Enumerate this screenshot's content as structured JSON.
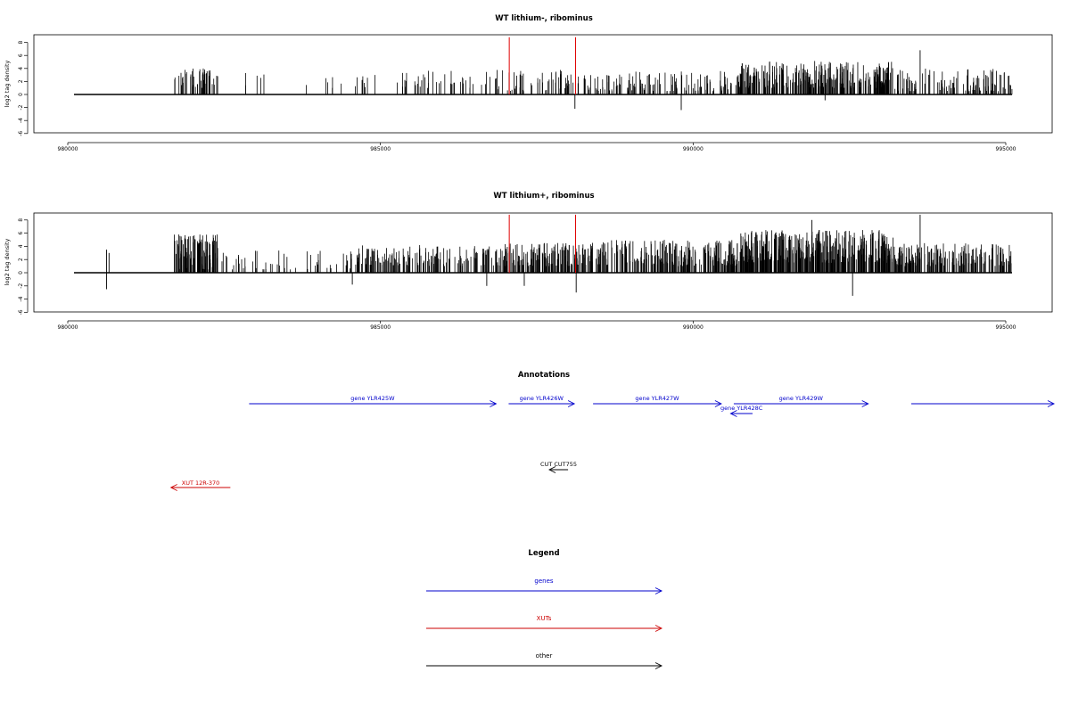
{
  "chart_data": [
    {
      "type": "bar",
      "title": "WT lithium-, ribominus",
      "ylabel": "log2 tag density",
      "xlim": [
        980000,
        995000
      ],
      "ylim": [
        -6,
        9
      ],
      "yticks": [
        -6,
        -4,
        -2,
        0,
        2,
        4,
        6,
        8
      ],
      "xticks": [
        980000,
        985000,
        990000,
        995000
      ],
      "baseline_span": [
        980100,
        995100
      ],
      "highlight_color": "#e00000",
      "bar_color": "#000000",
      "highlights": [
        {
          "x": 987060,
          "y": 8.8
        },
        {
          "x": 988120,
          "y": 8.8
        }
      ],
      "segments": [
        {
          "from": 981700,
          "to": 982400,
          "min": -4,
          "max": -1,
          "density": 0.07,
          "sign": "neg"
        },
        {
          "from": 982800,
          "to": 983300,
          "min": 1,
          "max": 3.5,
          "density": 0.01,
          "sign": "pos"
        },
        {
          "from": 983800,
          "to": 985200,
          "min": 1,
          "max": 3,
          "density": 0.01,
          "sign": "pos"
        },
        {
          "from": 985200,
          "to": 986800,
          "min": 1,
          "max": 3.7,
          "density": 0.025,
          "sign": "pos"
        },
        {
          "from": 986800,
          "to": 988300,
          "min": 0.5,
          "max": 3.8,
          "density": 0.04,
          "sign": "pos"
        },
        {
          "from": 988300,
          "to": 990700,
          "min": 0.5,
          "max": 3.6,
          "density": 0.05,
          "sign": "pos"
        },
        {
          "from": 990700,
          "to": 993200,
          "min": 1,
          "max": 5.2,
          "density": 0.12,
          "sign": "pos"
        },
        {
          "from": 993200,
          "to": 995100,
          "min": 0.5,
          "max": 4,
          "density": 0.06,
          "sign": "pos"
        }
      ],
      "spikes": [
        {
          "x": 993630,
          "y": 6.8
        },
        {
          "x": 988110,
          "y": -2.2
        },
        {
          "x": 989810,
          "y": -2.4
        },
        {
          "x": 992110,
          "y": -0.9
        }
      ]
    },
    {
      "type": "bar",
      "title": "WT lithium+, ribominus",
      "ylabel": "log2 tag density",
      "xlim": [
        980000,
        995000
      ],
      "ylim": [
        -6,
        9
      ],
      "yticks": [
        -6,
        -4,
        -2,
        0,
        2,
        4,
        6,
        8
      ],
      "xticks": [
        980000,
        985000,
        990000,
        995000
      ],
      "baseline_span": [
        980100,
        995100
      ],
      "highlight_color": "#e00000",
      "bar_color": "#000000",
      "highlights": [
        {
          "x": 987060,
          "y": 8.8
        },
        {
          "x": 988120,
          "y": 8.8
        }
      ],
      "segments": [
        {
          "from": 981700,
          "to": 982400,
          "min": -5.8,
          "max": -1.5,
          "density": 0.12,
          "sign": "neg"
        },
        {
          "from": 981700,
          "to": 982400,
          "min": 0.5,
          "max": 1.5,
          "density": 0.03,
          "sign": "pos"
        },
        {
          "from": 982400,
          "to": 984600,
          "min": 0.5,
          "max": 3.5,
          "density": 0.025,
          "sign": "pos"
        },
        {
          "from": 984600,
          "to": 986900,
          "min": 1,
          "max": 4.2,
          "density": 0.07,
          "sign": "pos"
        },
        {
          "from": 986900,
          "to": 988300,
          "min": 1,
          "max": 4.5,
          "density": 0.1,
          "sign": "pos"
        },
        {
          "from": 988300,
          "to": 990700,
          "min": 1,
          "max": 5,
          "density": 0.1,
          "sign": "pos"
        },
        {
          "from": 990700,
          "to": 993200,
          "min": 1.5,
          "max": 6.5,
          "density": 0.16,
          "sign": "pos"
        },
        {
          "from": 993200,
          "to": 995100,
          "min": 1,
          "max": 4.5,
          "density": 0.1,
          "sign": "pos"
        }
      ],
      "spikes": [
        {
          "x": 980620,
          "y": 3.5
        },
        {
          "x": 980620,
          "y": -2.5
        },
        {
          "x": 980660,
          "y": 3.0
        },
        {
          "x": 986700,
          "y": -2.0
        },
        {
          "x": 988130,
          "y": -3.0
        },
        {
          "x": 987300,
          "y": -2.0
        },
        {
          "x": 992550,
          "y": -3.5
        },
        {
          "x": 991900,
          "y": 8.0
        },
        {
          "x": 993630,
          "y": 8.8
        },
        {
          "x": 984550,
          "y": -1.8
        }
      ]
    }
  ],
  "annotations": {
    "title": "Annotations",
    "items": [
      {
        "label": "gene YLR425W",
        "from": 982900,
        "to": 986850,
        "color": "#0000cc",
        "row": 0
      },
      {
        "label": "gene YLR426W",
        "from": 987050,
        "to": 988100,
        "color": "#0000cc",
        "row": 0
      },
      {
        "label": "gene YLR427W",
        "from": 988400,
        "to": 990450,
        "color": "#0000cc",
        "row": 0
      },
      {
        "label": "gene YLR429W",
        "from": 990650,
        "to": 992800,
        "color": "#0000cc",
        "row": 0
      },
      {
        "label": "",
        "from": 993480,
        "to": 995100,
        "color": "#0000cc",
        "row": 0
      },
      {
        "label": "gene YLR428C",
        "from": 990950,
        "to": 990600,
        "color": "#0000cc",
        "row": 1
      },
      {
        "label": "CUT CUT755",
        "from": 988000,
        "to": 987700,
        "color": "#000000",
        "row": 2
      },
      {
        "label": "XUT 12R-370",
        "from": 982600,
        "to": 981650,
        "color": "#cc0000",
        "row": 3
      }
    ]
  },
  "legend": {
    "title": "Legend",
    "items": [
      {
        "label": "genes",
        "color": "#0000cc"
      },
      {
        "label": "XUTs",
        "color": "#cc0000"
      },
      {
        "label": "other",
        "color": "#000000"
      }
    ]
  }
}
